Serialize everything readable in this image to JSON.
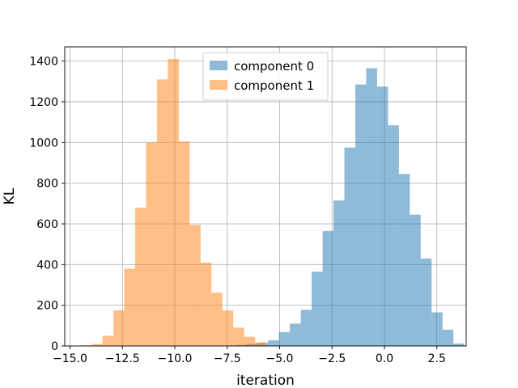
{
  "chart_data": {
    "type": "histogram",
    "title": "",
    "xlabel": "iteration",
    "ylabel": "KL",
    "xlim": [
      -15.25,
      3.9
    ],
    "ylim": [
      0,
      1470
    ],
    "xticks": [
      -15.0,
      -12.5,
      -10.0,
      -7.5,
      -5.0,
      -2.5,
      0.0,
      2.5
    ],
    "xtick_labels": [
      "−15.0",
      "−12.5",
      "−10.0",
      "−7.5",
      "−5.0",
      "−2.5",
      "0.0",
      "2.5"
    ],
    "yticks": [
      0,
      200,
      400,
      600,
      800,
      1000,
      1200,
      1400
    ],
    "ytick_labels": [
      "0",
      "200",
      "400",
      "600",
      "800",
      "1000",
      "1200",
      "1400"
    ],
    "grid": true,
    "legend_position": "top-center",
    "series": [
      {
        "name": "component 0",
        "color": "#1f77b4",
        "alpha": 0.5,
        "bin_edges": [
          -7.63,
          -7.11,
          -6.59,
          -6.07,
          -5.55,
          -5.03,
          -4.51,
          -3.99,
          -3.47,
          -2.95,
          -2.43,
          -1.91,
          -1.39,
          -0.87,
          -0.35,
          0.17,
          0.69,
          1.21,
          1.73,
          2.25,
          2.77,
          3.29,
          3.81
        ],
        "counts": [
          2,
          5,
          10,
          15,
          28,
          68,
          110,
          178,
          365,
          565,
          715,
          975,
          1285,
          1365,
          1275,
          1085,
          845,
          645,
          430,
          165,
          80,
          12
        ]
      },
      {
        "name": "component 1",
        "color": "#ff7f0e",
        "alpha": 0.5,
        "bin_edges": [
          -14.49,
          -13.97,
          -13.45,
          -12.93,
          -12.41,
          -11.89,
          -11.37,
          -10.85,
          -10.33,
          -9.81,
          -9.29,
          -8.77,
          -8.25,
          -7.73,
          -7.21,
          -6.69,
          -6.17,
          -5.65
        ],
        "counts": [
          3,
          10,
          50,
          175,
          380,
          680,
          1000,
          1310,
          1410,
          1005,
          595,
          410,
          262,
          175,
          90,
          45,
          18
        ]
      }
    ]
  }
}
